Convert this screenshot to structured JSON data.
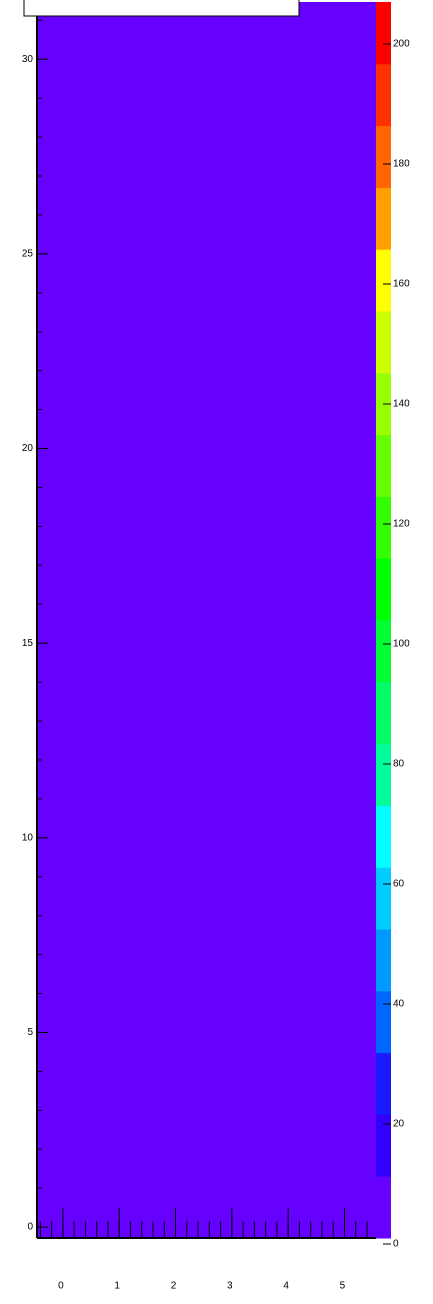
{
  "chart_data": {
    "type": "heatmap",
    "xlim": [
      -0.46,
      5.56
    ],
    "xticks": [
      0,
      1,
      2,
      3,
      4,
      5
    ],
    "x_minor_divisions": 5,
    "ylim": [
      -0.28,
      31.47
    ],
    "yticks": [
      0,
      5,
      10,
      15,
      20,
      25,
      30
    ],
    "y_minor_divisions": 5,
    "zlim": [
      0,
      207
    ],
    "zticks": [
      0,
      20,
      40,
      60,
      80,
      100,
      120,
      140,
      160,
      180,
      200
    ],
    "palette": [
      "#6600ff",
      "#3300ff",
      "#1a1aff",
      "#0066ff",
      "#0099ff",
      "#00ccff",
      "#00ffff",
      "#00ff99",
      "#00ff66",
      "#00ff33",
      "#00ff00",
      "#33ff00",
      "#66ff00",
      "#99ff00",
      "#ccff00",
      "#ffff00",
      "#ffa000",
      "#ff6600",
      "#ff3300",
      "#ff0000"
    ],
    "fill_level": 0
  }
}
